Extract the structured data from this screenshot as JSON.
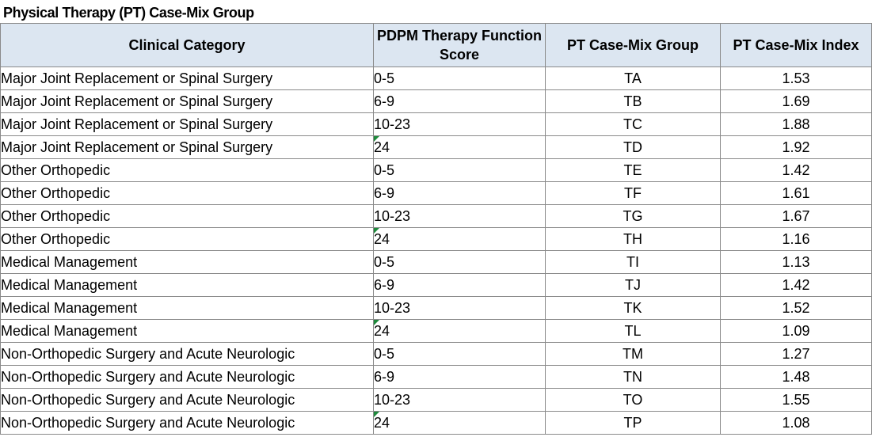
{
  "title": "Physical Therapy (PT) Case-Mix Group",
  "columns": {
    "category": "Clinical Category",
    "score": "PDPM Therapy Function Score",
    "group": "PT Case-Mix Group",
    "index": "PT Case-Mix Index"
  },
  "rows": [
    {
      "category": "Major Joint Replacement or Spinal Surgery",
      "score": "0-5",
      "group": "TA",
      "index": "1.53",
      "flag": false
    },
    {
      "category": "Major Joint Replacement or Spinal Surgery",
      "score": "6-9",
      "group": "TB",
      "index": "1.69",
      "flag": false
    },
    {
      "category": "Major Joint Replacement or Spinal Surgery",
      "score": "10-23",
      "group": "TC",
      "index": "1.88",
      "flag": false
    },
    {
      "category": "Major Joint Replacement or Spinal Surgery",
      "score": "24",
      "group": "TD",
      "index": "1.92",
      "flag": true
    },
    {
      "category": "Other Orthopedic",
      "score": "0-5",
      "group": "TE",
      "index": "1.42",
      "flag": false
    },
    {
      "category": "Other Orthopedic",
      "score": "6-9",
      "group": "TF",
      "index": "1.61",
      "flag": false
    },
    {
      "category": "Other Orthopedic",
      "score": "10-23",
      "group": "TG",
      "index": "1.67",
      "flag": false
    },
    {
      "category": "Other Orthopedic",
      "score": "24",
      "group": "TH",
      "index": "1.16",
      "flag": true
    },
    {
      "category": "Medical Management",
      "score": "0-5",
      "group": "TI",
      "index": "1.13",
      "flag": false
    },
    {
      "category": "Medical Management",
      "score": "6-9",
      "group": "TJ",
      "index": "1.42",
      "flag": false
    },
    {
      "category": "Medical Management",
      "score": "10-23",
      "group": "TK",
      "index": "1.52",
      "flag": false
    },
    {
      "category": "Medical Management",
      "score": "24",
      "group": "TL",
      "index": "1.09",
      "flag": true
    },
    {
      "category": "Non-Orthopedic Surgery and Acute Neurologic",
      "score": "0-5",
      "group": "TM",
      "index": "1.27",
      "flag": false
    },
    {
      "category": "Non-Orthopedic Surgery and Acute Neurologic",
      "score": "6-9",
      "group": "TN",
      "index": "1.48",
      "flag": false
    },
    {
      "category": "Non-Orthopedic Surgery and Acute Neurologic",
      "score": "10-23",
      "group": "TO",
      "index": "1.55",
      "flag": false
    },
    {
      "category": "Non-Orthopedic Surgery and Acute Neurologic",
      "score": "24",
      "group": "TP",
      "index": "1.08",
      "flag": true
    }
  ],
  "colors": {
    "header_fill": "#dce6f1",
    "grid_border": "#8a8a8a",
    "error_indicator": "#1e8a3c"
  }
}
